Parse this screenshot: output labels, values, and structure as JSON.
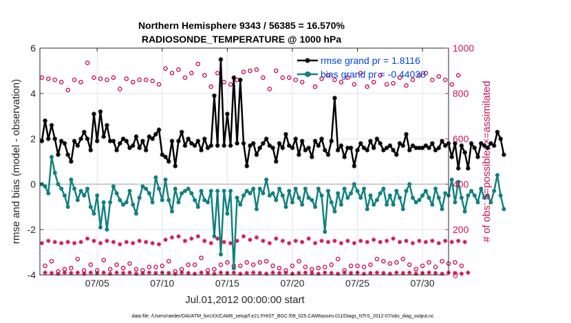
{
  "chart_data": {
    "type": "line",
    "title": "Northern Hemisphere 9343 / 56385 = 16.570%",
    "subtitle": "RADIOSONDE_TEMPERATURE @ 1000 hPa",
    "xlabel": "Jul.01,2012 00:00:00 start",
    "ylabel_left": "rmse and bias (model - observation)",
    "ylabel_right": "# of obs: o=possible; ×=assimilated",
    "footer": "data file: /Users/raeder/DAI/ATM_forcXX/CAM6_setup/f.e21.FHIST_BGC.f09_025.CAM6assim.011/Diags_NTrS_2012-07/obs_diag_output.nc",
    "xlim": [
      0.6,
      32.0
    ],
    "ylim_left": [
      -4,
      6
    ],
    "ylim_right": [
      0,
      1000
    ],
    "x_ticks": [
      {
        "day": 5,
        "label": "07/05"
      },
      {
        "day": 10,
        "label": "07/10"
      },
      {
        "day": 15,
        "label": "07/15"
      },
      {
        "day": 20,
        "label": "07/20"
      },
      {
        "day": 25,
        "label": "07/25"
      },
      {
        "day": 30,
        "label": "07/30"
      }
    ],
    "y_ticks_left": [
      "-4",
      "-2",
      "0",
      "2",
      "4",
      "6"
    ],
    "y_ticks_right": [
      "0",
      "200",
      "400",
      "600",
      "800",
      "1000"
    ],
    "grid": true,
    "x_start": 0.75,
    "x_step": 0.25,
    "colors": {
      "rmse": "#000000",
      "bias": "#128080",
      "obs": "#cc1155",
      "legend_text": "#0044dd",
      "zero_line": "#b0b0b0"
    },
    "series": [
      {
        "name": "rmse grand pr = 1.8116",
        "axis": "left",
        "marker": "star",
        "values": [
          1.9,
          2.8,
          2.0,
          2.6,
          2.0,
          1.3,
          1.9,
          1.8,
          1.3,
          1.0,
          1.9,
          1.7,
          2.0,
          2.3,
          2.0,
          1.5,
          3.1,
          1.9,
          3.2,
          2.1,
          2.6,
          1.9,
          1.9,
          1.5,
          1.8,
          2.0,
          1.9,
          1.6,
          1.7,
          2.1,
          1.6,
          1.9,
          1.5,
          2.1,
          2.0,
          2.2,
          2.4,
          1.3,
          1.2,
          1.0,
          1.9,
          0.8,
          1.9,
          2.3,
          1.7,
          2.0,
          1.8,
          1.7,
          1.9,
          1.5,
          2.0,
          1.6,
          1.7,
          3.9,
          1.7,
          5.5,
          1.7,
          3.1,
          1.7,
          4.7,
          1.8,
          4.6,
          1.8,
          0.8,
          1.7,
          1.8,
          1.3,
          1.6,
          1.8,
          2.0,
          1.7,
          1.6,
          1.0,
          1.8,
          1.6,
          2.2,
          1.7,
          1.6,
          2.0,
          1.3,
          1.9,
          1.5,
          1.6,
          1.2,
          1.9,
          1.7,
          2.0,
          1.5,
          1.3,
          1.9,
          3.8,
          1.5,
          1.7,
          1.2,
          1.6,
          1.6,
          0.8,
          1.5,
          1.8,
          1.6,
          1.5,
          1.9,
          1.6,
          2.0,
          1.8,
          1.5,
          1.6,
          1.7,
          1.5,
          1.3,
          1.8,
          1.7,
          2.2,
          1.5,
          1.7,
          1.6,
          1.6,
          1.6,
          1.7,
          1.6,
          1.8,
          1.5,
          1.6,
          1.9,
          1.7,
          1.8,
          1.2,
          1.8,
          0.7,
          1.7,
          1.4,
          0.7,
          1.8,
          1.6,
          1.2,
          1.8,
          1.7,
          1.6,
          1.8,
          1.7,
          2.3,
          2.0,
          1.3
        ]
      },
      {
        "name": "bias grand pr = -0.44038",
        "axis": "left",
        "marker": "dot",
        "values": [
          0.0,
          -0.1,
          -0.4,
          1.2,
          0.5,
          0.0,
          -0.2,
          -0.5,
          -1.0,
          0.2,
          -0.2,
          -0.7,
          -0.3,
          -0.5,
          -0.2,
          -1.0,
          -1.3,
          -0.5,
          -1.9,
          -0.8,
          -2.0,
          -0.8,
          -0.1,
          -0.4,
          -0.7,
          -0.9,
          -0.8,
          -0.3,
          -0.9,
          -1.3,
          -0.6,
          -0.1,
          -0.2,
          -0.4,
          -0.8,
          0.3,
          -0.2,
          -0.7,
          0.2,
          -0.7,
          -1.2,
          -0.2,
          -0.8,
          -0.4,
          -0.3,
          -0.2,
          -0.4,
          -0.7,
          -1.0,
          -0.3,
          -0.7,
          -0.8,
          -0.3,
          -2.3,
          -0.3,
          -3.1,
          -0.3,
          -1.3,
          -0.3,
          -3.7,
          -0.6,
          -0.9,
          -0.5,
          -0.3,
          -0.4,
          -0.2,
          -1.1,
          -0.2,
          -0.4,
          0.2,
          -0.5,
          -0.4,
          -0.7,
          -0.2,
          -0.5,
          -1.0,
          -0.3,
          -0.8,
          -0.2,
          -0.6,
          -0.9,
          -0.2,
          -0.6,
          -0.7,
          -1.0,
          -0.2,
          -0.5,
          -2.1,
          -0.3,
          -0.8,
          -1.2,
          -0.4,
          -0.9,
          -0.2,
          -0.6,
          -0.4,
          0.0,
          -0.3,
          -0.6,
          -0.2,
          -1.1,
          -0.5,
          -0.9,
          -0.7,
          -0.4,
          -0.2,
          -0.9,
          -0.5,
          -0.9,
          -0.3,
          -0.6,
          -1.1,
          -0.3,
          0.0,
          -0.6,
          -0.8,
          -0.7,
          -0.5,
          -0.3,
          -0.6,
          -0.9,
          -0.2,
          -0.6,
          -1.1,
          -0.4,
          -0.5,
          0.2,
          -0.8,
          0.1,
          -0.6,
          -1.2,
          -0.5,
          -0.3,
          -0.5,
          -0.8,
          -0.2,
          -0.6,
          -0.5,
          -0.8,
          -0.3,
          0.4,
          -0.5,
          -1.1
        ]
      },
      {
        "name": "obs possible",
        "axis": "right",
        "marker": "open-circle",
        "values": [
          870,
          40,
          865,
          60,
          860,
          15,
          850,
          25,
          815,
          30,
          860,
          70,
          850,
          20,
          935,
          45,
          870,
          20,
          865,
          65,
          860,
          25,
          870,
          45,
          820,
          30,
          865,
          50,
          850,
          25,
          860,
          20,
          860,
          35,
          855,
          35,
          840,
          40,
          910,
          60,
          890,
          15,
          905,
          25,
          870,
          45,
          890,
          45,
          930,
          75,
          880,
          20,
          830,
          25,
          890,
          45,
          850,
          55,
          840,
          40,
          860,
          40,
          895,
          55,
          900,
          45,
          905,
          55,
          870,
          60,
          820,
          40,
          900,
          30,
          870,
          20,
          870,
          40,
          860,
          60,
          850,
          35,
          885,
          25,
          830,
          30,
          865,
          35,
          880,
          45,
          860,
          70,
          850,
          20,
          870,
          40,
          840,
          40,
          890,
          35,
          830,
          45,
          850,
          70,
          880,
          60,
          840,
          50,
          845,
          55,
          870,
          70,
          835,
          45,
          860,
          25,
          880,
          40,
          890,
          55,
          860,
          35,
          875,
          60,
          860,
          50,
          840,
          55,
          880,
          40
        ]
      },
      {
        "name": "obs assimilated",
        "axis": "right",
        "marker": "asterisk",
        "values": [
          140,
          10,
          150,
          8,
          145,
          5,
          140,
          10,
          145,
          8,
          140,
          10,
          145,
          5,
          160,
          10,
          150,
          8,
          140,
          10,
          150,
          5,
          145,
          10,
          135,
          8,
          145,
          10,
          140,
          5,
          150,
          8,
          145,
          10,
          140,
          8,
          135,
          10,
          155,
          8,
          165,
          5,
          170,
          10,
          150,
          8,
          160,
          5,
          170,
          10,
          150,
          8,
          140,
          5,
          160,
          10,
          145,
          8,
          140,
          10,
          150,
          5,
          170,
          8,
          155,
          10,
          165,
          8,
          150,
          5,
          140,
          10,
          160,
          8,
          150,
          10,
          140,
          5,
          150,
          8,
          145,
          10,
          160,
          8,
          140,
          5,
          150,
          10,
          145,
          8,
          150,
          5,
          140,
          10,
          150,
          8,
          140,
          10,
          150,
          5,
          145,
          8,
          155,
          10,
          145,
          8,
          150,
          5,
          160,
          10,
          145,
          8,
          150,
          10,
          140,
          5,
          150,
          8,
          145,
          10,
          150,
          8,
          140,
          5,
          150,
          10,
          145,
          8,
          150,
          5,
          145,
          10
        ]
      }
    ]
  }
}
